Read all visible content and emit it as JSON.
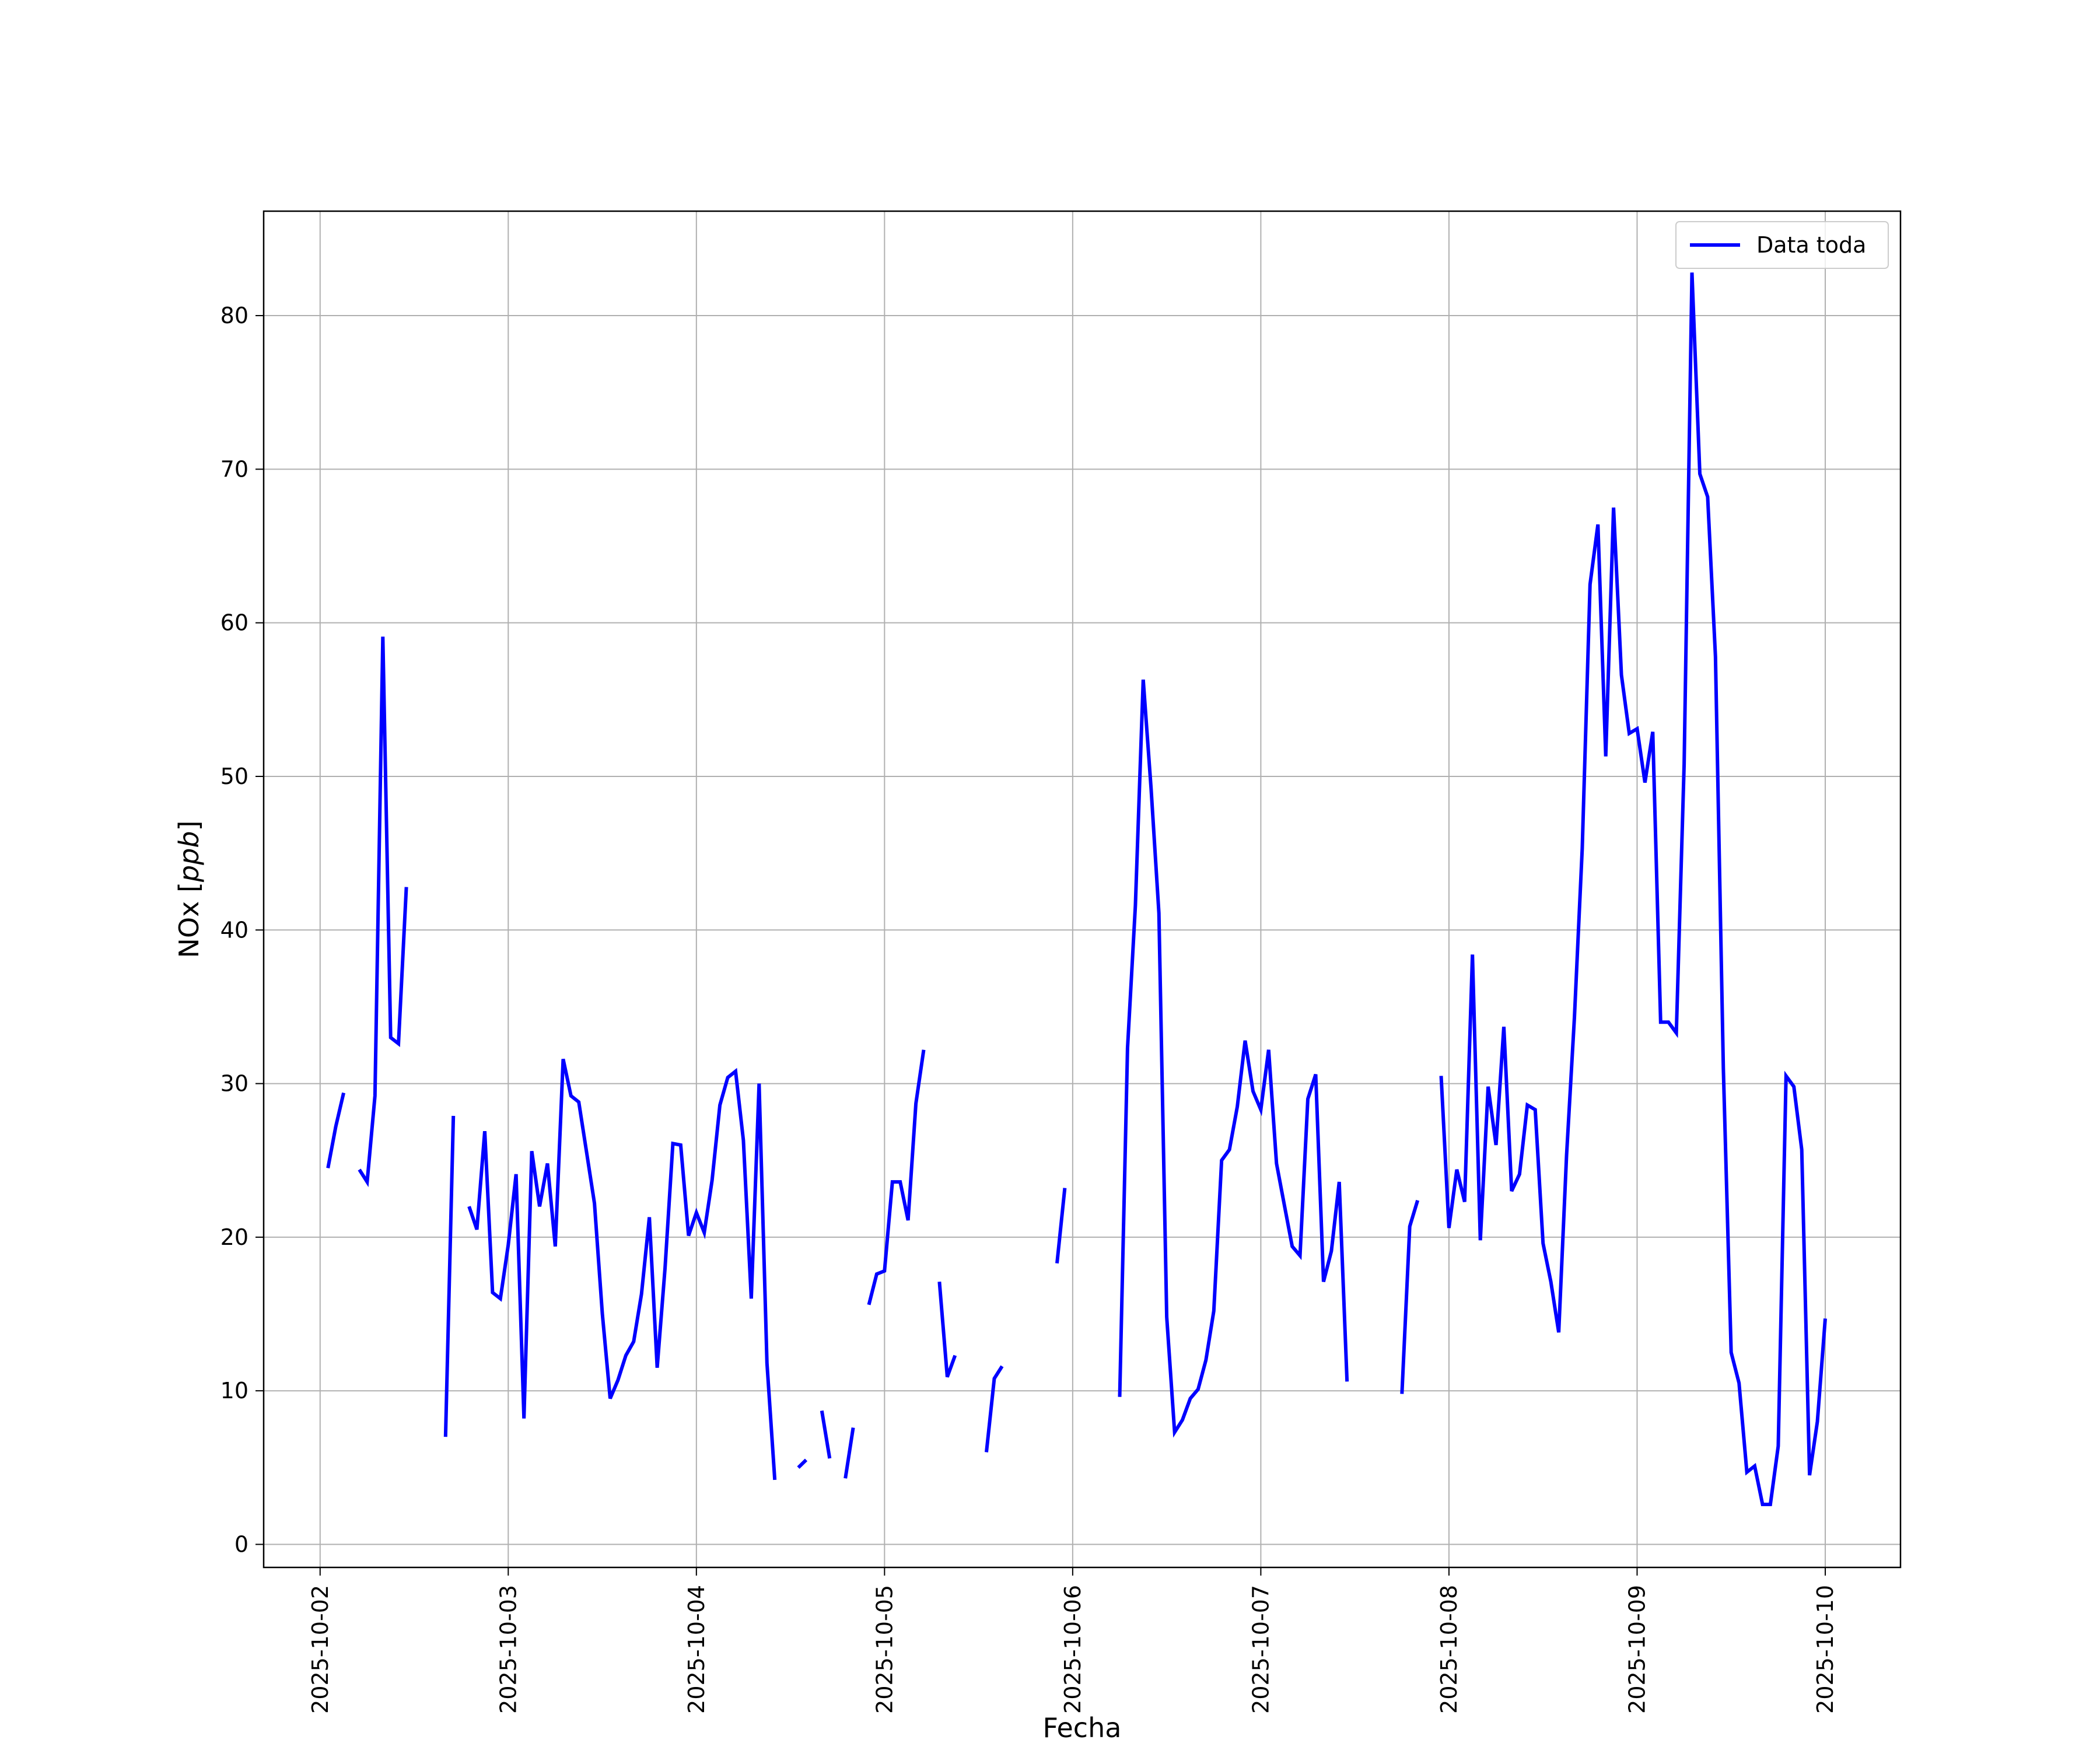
{
  "chart_data": {
    "type": "line",
    "xlabel": "Fecha",
    "ylabel": "NOx [ppb]",
    "ylabel_parts": {
      "base": "NOx [",
      "unit": "ppb",
      "close": "]"
    },
    "xlim": [
      "2025-10-01 16:48",
      "2025-10-10 09:36"
    ],
    "ylim": [
      -1.5,
      86.8
    ],
    "x_ticks": [
      "2025-10-02",
      "2025-10-03",
      "2025-10-04",
      "2025-10-05",
      "2025-10-06",
      "2025-10-07",
      "2025-10-08",
      "2025-10-09",
      "2025-10-10"
    ],
    "y_ticks": [
      0,
      10,
      20,
      30,
      40,
      50,
      60,
      70,
      80
    ],
    "grid": true,
    "legend": {
      "position": "top-right",
      "entries": [
        "Data toda"
      ]
    },
    "series": [
      {
        "name": "Data toda",
        "color": "#0000ff",
        "segments": [
          [
            [
              "2025-10-02 01:00",
              24.5
            ],
            [
              "2025-10-02 02:00",
              27.2
            ],
            [
              "2025-10-02 03:00",
              29.4
            ]
          ],
          [
            [
              "2025-10-02 05:00",
              24.4
            ],
            [
              "2025-10-02 06:00",
              23.6
            ],
            [
              "2025-10-02 07:00",
              29.2
            ],
            [
              "2025-10-02 08:00",
              59.1
            ],
            [
              "2025-10-02 09:00",
              33.0
            ],
            [
              "2025-10-02 10:00",
              32.6
            ],
            [
              "2025-10-02 11:00",
              42.8
            ]
          ],
          [
            [
              "2025-10-02 16:00",
              7.0
            ],
            [
              "2025-10-02 17:00",
              27.9
            ]
          ],
          [
            [
              "2025-10-02 19:00",
              22.0
            ],
            [
              "2025-10-02 20:00",
              20.5
            ],
            [
              "2025-10-02 21:00",
              26.9
            ],
            [
              "2025-10-02 22:00",
              16.4
            ],
            [
              "2025-10-02 23:00",
              16.0
            ],
            [
              "2025-10-03 00:00",
              19.5
            ],
            [
              "2025-10-03 01:00",
              24.1
            ],
            [
              "2025-10-03 02:00",
              8.2
            ],
            [
              "2025-10-03 03:00",
              25.6
            ],
            [
              "2025-10-03 04:00",
              22.0
            ],
            [
              "2025-10-03 05:00",
              24.8
            ],
            [
              "2025-10-03 06:00",
              19.4
            ],
            [
              "2025-10-03 07:00",
              31.6
            ],
            [
              "2025-10-03 08:00",
              29.2
            ],
            [
              "2025-10-03 09:00",
              28.8
            ],
            [
              "2025-10-03 10:00",
              25.5
            ],
            [
              "2025-10-03 11:00",
              22.2
            ],
            [
              "2025-10-03 12:00",
              15.0
            ],
            [
              "2025-10-03 13:00",
              9.5
            ],
            [
              "2025-10-03 14:00",
              10.7
            ],
            [
              "2025-10-03 15:00",
              12.3
            ],
            [
              "2025-10-03 16:00",
              13.2
            ],
            [
              "2025-10-03 17:00",
              16.3
            ],
            [
              "2025-10-03 18:00",
              21.3
            ],
            [
              "2025-10-03 19:00",
              11.5
            ],
            [
              "2025-10-03 20:00",
              18.0
            ],
            [
              "2025-10-03 21:00",
              26.1
            ],
            [
              "2025-10-03 22:00",
              26.0
            ],
            [
              "2025-10-03 23:00",
              20.1
            ],
            [
              "2025-10-04 00:00",
              21.6
            ],
            [
              "2025-10-04 01:00",
              20.3
            ],
            [
              "2025-10-04 02:00",
              23.7
            ],
            [
              "2025-10-04 03:00",
              28.6
            ],
            [
              "2025-10-04 04:00",
              30.4
            ],
            [
              "2025-10-04 05:00",
              30.8
            ],
            [
              "2025-10-04 06:00",
              26.3
            ],
            [
              "2025-10-04 07:00",
              16.0
            ],
            [
              "2025-10-04 08:00",
              30.0
            ],
            [
              "2025-10-04 09:00",
              11.8
            ],
            [
              "2025-10-04 10:00",
              4.2
            ]
          ],
          [
            [
              "2025-10-04 13:00",
              5.0
            ],
            [
              "2025-10-04 14:00",
              5.5
            ]
          ],
          [
            [
              "2025-10-04 16:00",
              8.7
            ],
            [
              "2025-10-04 17:00",
              5.6
            ]
          ],
          [
            [
              "2025-10-04 19:00",
              4.3
            ],
            [
              "2025-10-04 20:00",
              7.6
            ]
          ],
          [
            [
              "2025-10-04 22:00",
              15.6
            ],
            [
              "2025-10-04 23:00",
              17.6
            ],
            [
              "2025-10-05 00:00",
              17.8
            ],
            [
              "2025-10-05 01:00",
              23.6
            ],
            [
              "2025-10-05 02:00",
              23.6
            ],
            [
              "2025-10-05 03:00",
              21.1
            ],
            [
              "2025-10-05 04:00",
              28.7
            ],
            [
              "2025-10-05 05:00",
              32.2
            ]
          ],
          [
            [
              "2025-10-05 07:00",
              17.1
            ],
            [
              "2025-10-05 08:00",
              10.9
            ],
            [
              "2025-10-05 09:00",
              12.3
            ]
          ],
          [
            [
              "2025-10-05 13:00",
              6.0
            ],
            [
              "2025-10-05 14:00",
              10.8
            ],
            [
              "2025-10-05 15:00",
              11.6
            ]
          ],
          [
            [
              "2025-10-05 22:00",
              18.3
            ],
            [
              "2025-10-05 23:00",
              23.2
            ]
          ],
          [
            [
              "2025-10-06 06:00",
              9.6
            ],
            [
              "2025-10-06 07:00",
              32.3
            ],
            [
              "2025-10-06 08:00",
              41.6
            ],
            [
              "2025-10-06 09:00",
              56.3
            ],
            [
              "2025-10-06 10:00",
              49.2
            ],
            [
              "2025-10-06 11:00",
              41.1
            ],
            [
              "2025-10-06 12:00",
              14.8
            ],
            [
              "2025-10-06 13:00",
              7.3
            ],
            [
              "2025-10-06 14:00",
              8.1
            ],
            [
              "2025-10-06 15:00",
              9.5
            ],
            [
              "2025-10-06 16:00",
              10.1
            ],
            [
              "2025-10-06 17:00",
              12.0
            ],
            [
              "2025-10-06 18:00",
              15.2
            ],
            [
              "2025-10-06 19:00",
              25.0
            ],
            [
              "2025-10-06 20:00",
              25.7
            ],
            [
              "2025-10-06 21:00",
              28.5
            ],
            [
              "2025-10-06 22:00",
              32.8
            ],
            [
              "2025-10-06 23:00",
              29.5
            ],
            [
              "2025-10-07 00:00",
              28.3
            ],
            [
              "2025-10-07 01:00",
              32.2
            ],
            [
              "2025-10-07 02:00",
              24.8
            ],
            [
              "2025-10-07 03:00",
              22.1
            ],
            [
              "2025-10-07 04:00",
              19.4
            ],
            [
              "2025-10-07 05:00",
              18.8
            ],
            [
              "2025-10-07 06:00",
              29.0
            ],
            [
              "2025-10-07 07:00",
              30.6
            ],
            [
              "2025-10-07 08:00",
              17.1
            ],
            [
              "2025-10-07 09:00",
              19.1
            ],
            [
              "2025-10-07 10:00",
              23.6
            ],
            [
              "2025-10-07 11:00",
              10.6
            ]
          ],
          [
            [
              "2025-10-07 18:00",
              9.8
            ],
            [
              "2025-10-07 19:00",
              20.7
            ],
            [
              "2025-10-07 20:00",
              22.4
            ]
          ],
          [
            [
              "2025-10-07 23:00",
              30.5
            ],
            [
              "2025-10-08 00:00",
              20.6
            ],
            [
              "2025-10-08 01:00",
              24.4
            ],
            [
              "2025-10-08 02:00",
              22.3
            ],
            [
              "2025-10-08 03:00",
              38.4
            ],
            [
              "2025-10-08 04:00",
              19.8
            ],
            [
              "2025-10-08 05:00",
              29.8
            ],
            [
              "2025-10-08 06:00",
              26.0
            ],
            [
              "2025-10-08 07:00",
              33.7
            ],
            [
              "2025-10-08 08:00",
              23.0
            ],
            [
              "2025-10-08 09:00",
              24.1
            ],
            [
              "2025-10-08 10:00",
              28.6
            ],
            [
              "2025-10-08 11:00",
              28.3
            ],
            [
              "2025-10-08 12:00",
              19.6
            ],
            [
              "2025-10-08 13:00",
              17.1
            ],
            [
              "2025-10-08 14:00",
              13.8
            ],
            [
              "2025-10-08 15:00",
              25.3
            ],
            [
              "2025-10-08 16:00",
              34.3
            ],
            [
              "2025-10-08 17:00",
              45.3
            ],
            [
              "2025-10-08 18:00",
              62.5
            ],
            [
              "2025-10-08 19:00",
              66.4
            ],
            [
              "2025-10-08 20:00",
              51.3
            ],
            [
              "2025-10-08 21:00",
              67.5
            ],
            [
              "2025-10-08 22:00",
              56.6
            ],
            [
              "2025-10-08 23:00",
              52.8
            ],
            [
              "2025-10-09 00:00",
              53.1
            ],
            [
              "2025-10-09 01:00",
              49.6
            ],
            [
              "2025-10-09 02:00",
              52.9
            ],
            [
              "2025-10-09 03:00",
              34.0
            ],
            [
              "2025-10-09 04:00",
              34.0
            ],
            [
              "2025-10-09 05:00",
              33.3
            ],
            [
              "2025-10-09 06:00",
              50.8
            ],
            [
              "2025-10-09 07:00",
              82.8
            ],
            [
              "2025-10-09 08:00",
              69.7
            ],
            [
              "2025-10-09 09:00",
              68.2
            ],
            [
              "2025-10-09 10:00",
              57.8
            ],
            [
              "2025-10-09 11:00",
              31.0
            ],
            [
              "2025-10-09 12:00",
              12.5
            ],
            [
              "2025-10-09 13:00",
              10.5
            ],
            [
              "2025-10-09 14:00",
              4.7
            ],
            [
              "2025-10-09 15:00",
              5.1
            ],
            [
              "2025-10-09 16:00",
              2.6
            ],
            [
              "2025-10-09 17:00",
              2.6
            ],
            [
              "2025-10-09 18:00",
              6.4
            ],
            [
              "2025-10-09 19:00",
              30.5
            ],
            [
              "2025-10-09 20:00",
              29.8
            ],
            [
              "2025-10-09 21:00",
              25.7
            ],
            [
              "2025-10-09 22:00",
              4.5
            ],
            [
              "2025-10-09 23:00",
              8.0
            ],
            [
              "2025-10-10 00:00",
              14.7
            ]
          ]
        ]
      }
    ]
  }
}
